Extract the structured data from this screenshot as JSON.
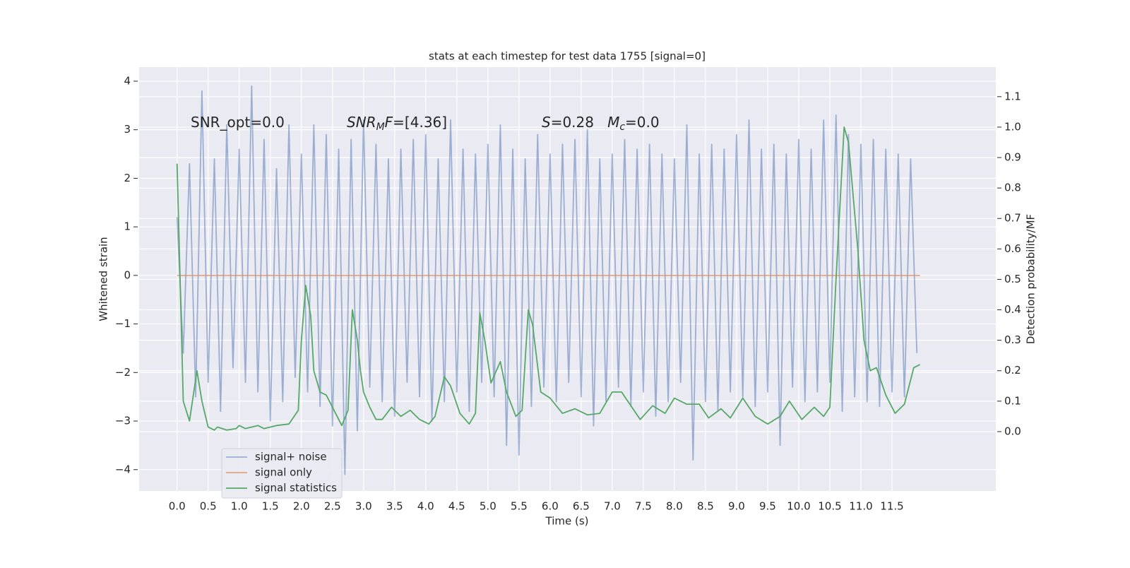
{
  "chart_data": {
    "type": "line",
    "title": "stats at each timestep for test data 1755 [signal=0]",
    "x_label": "Time (s)",
    "y_label": "Whitened strain",
    "y2_label": "Detection probability/MF",
    "annotations": [
      [
        {
          "text": "SNR_opt=0.0"
        }
      ],
      [
        {
          "text": "SNR",
          "italic": true
        },
        {
          "text": "M",
          "italic": true,
          "sub": true
        },
        {
          "text": "F",
          "italic": true
        },
        {
          "text": "=[4.36]"
        }
      ],
      [
        {
          "text": "S",
          "italic": true
        },
        {
          "text": "=0.28   "
        },
        {
          "text": "M",
          "italic": true
        },
        {
          "text": "c",
          "italic": true,
          "sub": true
        },
        {
          "text": "=0.0"
        }
      ]
    ],
    "xlim": [
      -0.61,
      13.17
    ],
    "ylim": [
      -4.44,
      4.29
    ],
    "y2lim": [
      -0.195,
      1.197
    ],
    "xticks": [
      {
        "value": 0,
        "label": "0.0"
      },
      0.5,
      {
        "value": 1,
        "label": "1.0"
      },
      1.5,
      {
        "value": 2,
        "label": "2.0"
      },
      2.5,
      {
        "value": 3,
        "label": "3.0"
      },
      3.5,
      {
        "value": 4,
        "label": "4.0"
      },
      4.5,
      {
        "value": 5,
        "label": "5.0"
      },
      5.5,
      {
        "value": 6,
        "label": "6.0"
      },
      6.5,
      {
        "value": 7,
        "label": "7.0"
      },
      7.5,
      {
        "value": 8,
        "label": "8.0"
      },
      8.5,
      {
        "value": 9,
        "label": "9.0"
      },
      9.5,
      {
        "value": 10,
        "label": "10.0"
      },
      10.5,
      {
        "value": 11,
        "label": "11.0"
      },
      11.5
    ],
    "yticks": [
      {
        "value": -4,
        "label": "−4"
      },
      {
        "value": -3,
        "label": "−3"
      },
      {
        "value": -2,
        "label": "−2"
      },
      {
        "value": -1,
        "label": "−1"
      },
      0,
      1,
      2,
      3,
      4
    ],
    "y2ticks": [
      {
        "value": 0,
        "label": "0.0"
      },
      0.1,
      0.2,
      0.3,
      0.4,
      0.5,
      0.6,
      0.7,
      0.8,
      0.9,
      {
        "value": 1,
        "label": "1.0"
      },
      1.1
    ],
    "grid": true,
    "legend": "lower left",
    "series": [
      {
        "name": "signal+ noise",
        "color": "#4c72b0",
        "alpha": 0.5,
        "x": [
          0,
          0.1,
          0.2,
          0.3,
          0.4,
          0.5,
          0.6,
          0.7,
          0.8,
          0.9,
          1,
          1.1,
          1.2,
          1.3,
          1.4,
          1.5,
          1.6,
          1.7,
          1.8,
          1.9,
          2,
          2.1,
          2.2,
          2.3,
          2.4,
          2.5,
          2.6,
          2.7,
          2.8,
          2.9,
          3,
          3.1,
          3.2,
          3.3,
          3.4,
          3.5,
          3.6,
          3.7,
          3.8,
          3.9,
          4,
          4.1,
          4.2,
          4.3,
          4.4,
          4.5,
          4.6,
          4.7,
          4.8,
          4.9,
          5,
          5.1,
          5.2,
          5.3,
          5.4,
          5.5,
          5.6,
          5.7,
          5.8,
          5.9,
          6,
          6.1,
          6.2,
          6.3,
          6.4,
          6.5,
          6.6,
          6.7,
          6.8,
          6.9,
          7,
          7.1,
          7.2,
          7.3,
          7.4,
          7.5,
          7.6,
          7.7,
          7.8,
          7.9,
          8,
          8.1,
          8.2,
          8.3,
          8.4,
          8.5,
          8.6,
          8.7,
          8.8,
          8.9,
          9,
          9.1,
          9.2,
          9.3,
          9.4,
          9.5,
          9.6,
          9.7,
          9.8,
          9.9,
          10,
          10.1,
          10.2,
          10.3,
          10.4,
          10.5,
          10.6,
          10.7,
          10.8,
          10.9,
          11,
          11.1,
          11.2,
          11.3,
          11.4,
          11.5,
          11.6,
          11.7,
          11.8,
          11.9
        ],
        "values": [
          1.2,
          -1.6,
          2.3,
          -2.5,
          3.8,
          -2.2,
          2.4,
          -2.8,
          3.1,
          -1.9,
          2.6,
          -2.2,
          3.9,
          -2.4,
          2.8,
          -3.0,
          2.2,
          -2.6,
          3.1,
          -2.1,
          2.5,
          -2.4,
          3.1,
          -2.7,
          2.9,
          -3.1,
          2.6,
          -4.1,
          2.8,
          -3.2,
          3.2,
          -2.3,
          2.7,
          -2.6,
          2.4,
          -2.9,
          2.6,
          -2.2,
          2.8,
          -2.5,
          2.9,
          -3.0,
          2.4,
          -2.6,
          3.2,
          -2.4,
          2.6,
          -2.8,
          2.5,
          -2.2,
          2.7,
          -2.5,
          3.1,
          -3.5,
          2.6,
          -3.7,
          2.4,
          -2.7,
          2.9,
          -2.3,
          2.5,
          -2.6,
          2.7,
          -2.2,
          2.8,
          -2.5,
          3.0,
          -3.1,
          2.4,
          -2.6,
          2.5,
          -2.3,
          2.8,
          -2.7,
          2.6,
          -2.4,
          2.7,
          -2.9,
          2.5,
          -2.6,
          2.4,
          -2.2,
          3.1,
          -3.8,
          2.5,
          -2.6,
          2.7,
          -2.8,
          2.6,
          -2.4,
          2.9,
          -2.5,
          3.2,
          -2.7,
          2.6,
          -2.4,
          2.7,
          -3.5,
          2.5,
          -2.3,
          2.8,
          -2.6,
          2.6,
          -2.4,
          3.2,
          -2.2,
          3.3,
          -2.8,
          2.9,
          -2.5,
          2.7,
          -2.6,
          2.8,
          -2.7,
          2.6,
          -2.4,
          2.5,
          -2.5,
          2.4,
          -1.6
        ]
      },
      {
        "name": "signal only",
        "color": "#dd8452",
        "alpha": 0.7,
        "x": [
          0,
          11.95
        ],
        "values": [
          0,
          0
        ]
      },
      {
        "name": "signal statistics",
        "color": "#55a868",
        "axis": "y2",
        "x": [
          0,
          0.1,
          0.2,
          0.32,
          0.4,
          0.5,
          0.6,
          0.65,
          0.8,
          0.95,
          1.0,
          1.1,
          1.3,
          1.4,
          1.6,
          1.8,
          1.95,
          2.0,
          2.07,
          2.15,
          2.2,
          2.3,
          2.4,
          2.5,
          2.65,
          2.75,
          2.82,
          2.9,
          2.95,
          3.0,
          3.1,
          3.2,
          3.3,
          3.45,
          3.6,
          3.75,
          3.9,
          4.05,
          4.15,
          4.3,
          4.4,
          4.55,
          4.7,
          4.8,
          4.87,
          4.95,
          5.05,
          5.2,
          5.3,
          5.45,
          5.55,
          5.65,
          5.72,
          5.85,
          6.0,
          6.2,
          6.4,
          6.6,
          6.8,
          7.0,
          7.15,
          7.45,
          7.65,
          7.85,
          8.0,
          8.2,
          8.4,
          8.55,
          8.75,
          8.9,
          9.1,
          9.3,
          9.5,
          9.7,
          9.85,
          10.05,
          10.25,
          10.4,
          10.5,
          10.6,
          10.73,
          10.8,
          10.95,
          11.05,
          11.15,
          11.25,
          11.4,
          11.55,
          11.7,
          11.85,
          11.95
        ],
        "values": [
          0.88,
          0.1,
          0.035,
          0.2,
          0.1,
          0.015,
          0.005,
          0.015,
          0.005,
          0.01,
          0.02,
          0.01,
          0.02,
          0.01,
          0.02,
          0.025,
          0.07,
          0.3,
          0.48,
          0.38,
          0.2,
          0.13,
          0.12,
          0.08,
          0.02,
          0.07,
          0.4,
          0.3,
          0.2,
          0.13,
          0.08,
          0.04,
          0.04,
          0.08,
          0.05,
          0.07,
          0.04,
          0.025,
          0.05,
          0.18,
          0.15,
          0.06,
          0.025,
          0.06,
          0.39,
          0.3,
          0.16,
          0.23,
          0.13,
          0.05,
          0.07,
          0.4,
          0.35,
          0.13,
          0.11,
          0.06,
          0.075,
          0.055,
          0.06,
          0.13,
          0.13,
          0.04,
          0.085,
          0.06,
          0.11,
          0.09,
          0.09,
          0.045,
          0.075,
          0.045,
          0.11,
          0.05,
          0.025,
          0.05,
          0.1,
          0.04,
          0.08,
          0.05,
          0.08,
          0.5,
          1.0,
          0.95,
          0.6,
          0.3,
          0.2,
          0.21,
          0.12,
          0.06,
          0.09,
          0.21,
          0.22
        ]
      }
    ]
  }
}
